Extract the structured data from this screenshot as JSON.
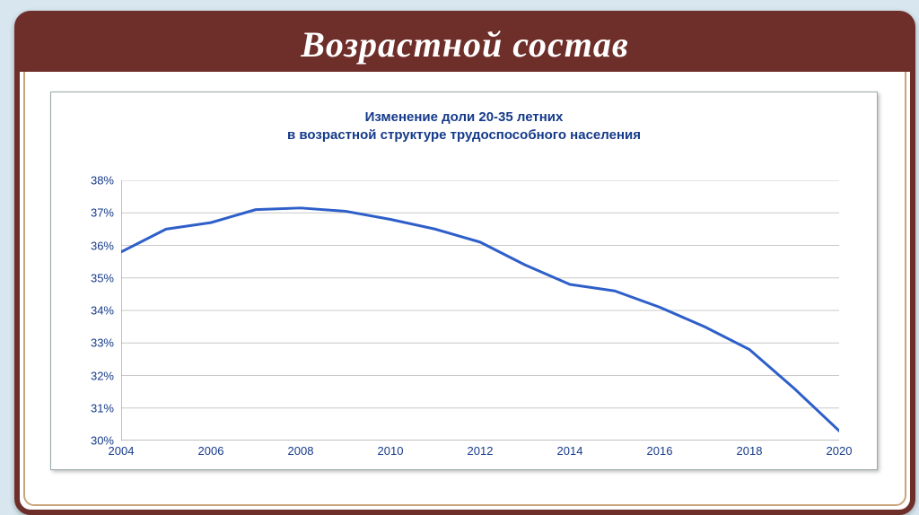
{
  "slide": {
    "heading": "Возрастной состав"
  },
  "chart": {
    "type": "line",
    "title_line1": "Изменение доли 20-35 летних",
    "title_line2": "в возрастной структуре трудоспособного населения",
    "title_color": "#153a8a",
    "title_fontsize": 15,
    "background_color": "#ffffff",
    "grid_color": "#c9c9c9",
    "axis_color": "#808080",
    "label_color": "#153a8a",
    "label_fontsize": 13,
    "line_color": "#2e5fc9",
    "line_width": 3,
    "x": {
      "min": 2004,
      "max": 2020,
      "tick_labels": [
        "2004",
        "2006",
        "2008",
        "2010",
        "2012",
        "2014",
        "2016",
        "2018",
        "2020"
      ],
      "tick_values": [
        2004,
        2006,
        2008,
        2010,
        2012,
        2014,
        2016,
        2018,
        2020
      ]
    },
    "y": {
      "min": 30,
      "max": 38,
      "tick_labels": [
        "30%",
        "31%",
        "32%",
        "33%",
        "34%",
        "35%",
        "36%",
        "37%",
        "38%"
      ],
      "tick_values": [
        30,
        31,
        32,
        33,
        34,
        35,
        36,
        37,
        38
      ]
    },
    "series": {
      "x": [
        2004,
        2005,
        2006,
        2007,
        2008,
        2009,
        2010,
        2011,
        2012,
        2013,
        2014,
        2015,
        2016,
        2017,
        2018,
        2019,
        2020
      ],
      "y": [
        35.8,
        36.5,
        36.7,
        37.1,
        37.15,
        37.05,
        36.8,
        36.5,
        36.1,
        35.4,
        34.8,
        34.6,
        34.1,
        33.5,
        32.8,
        31.6,
        30.3
      ]
    }
  },
  "frame": {
    "outer_border_color": "#6e2e2a",
    "inner_border_color": "#c9a57c",
    "page_background": "#d8e6ef"
  }
}
